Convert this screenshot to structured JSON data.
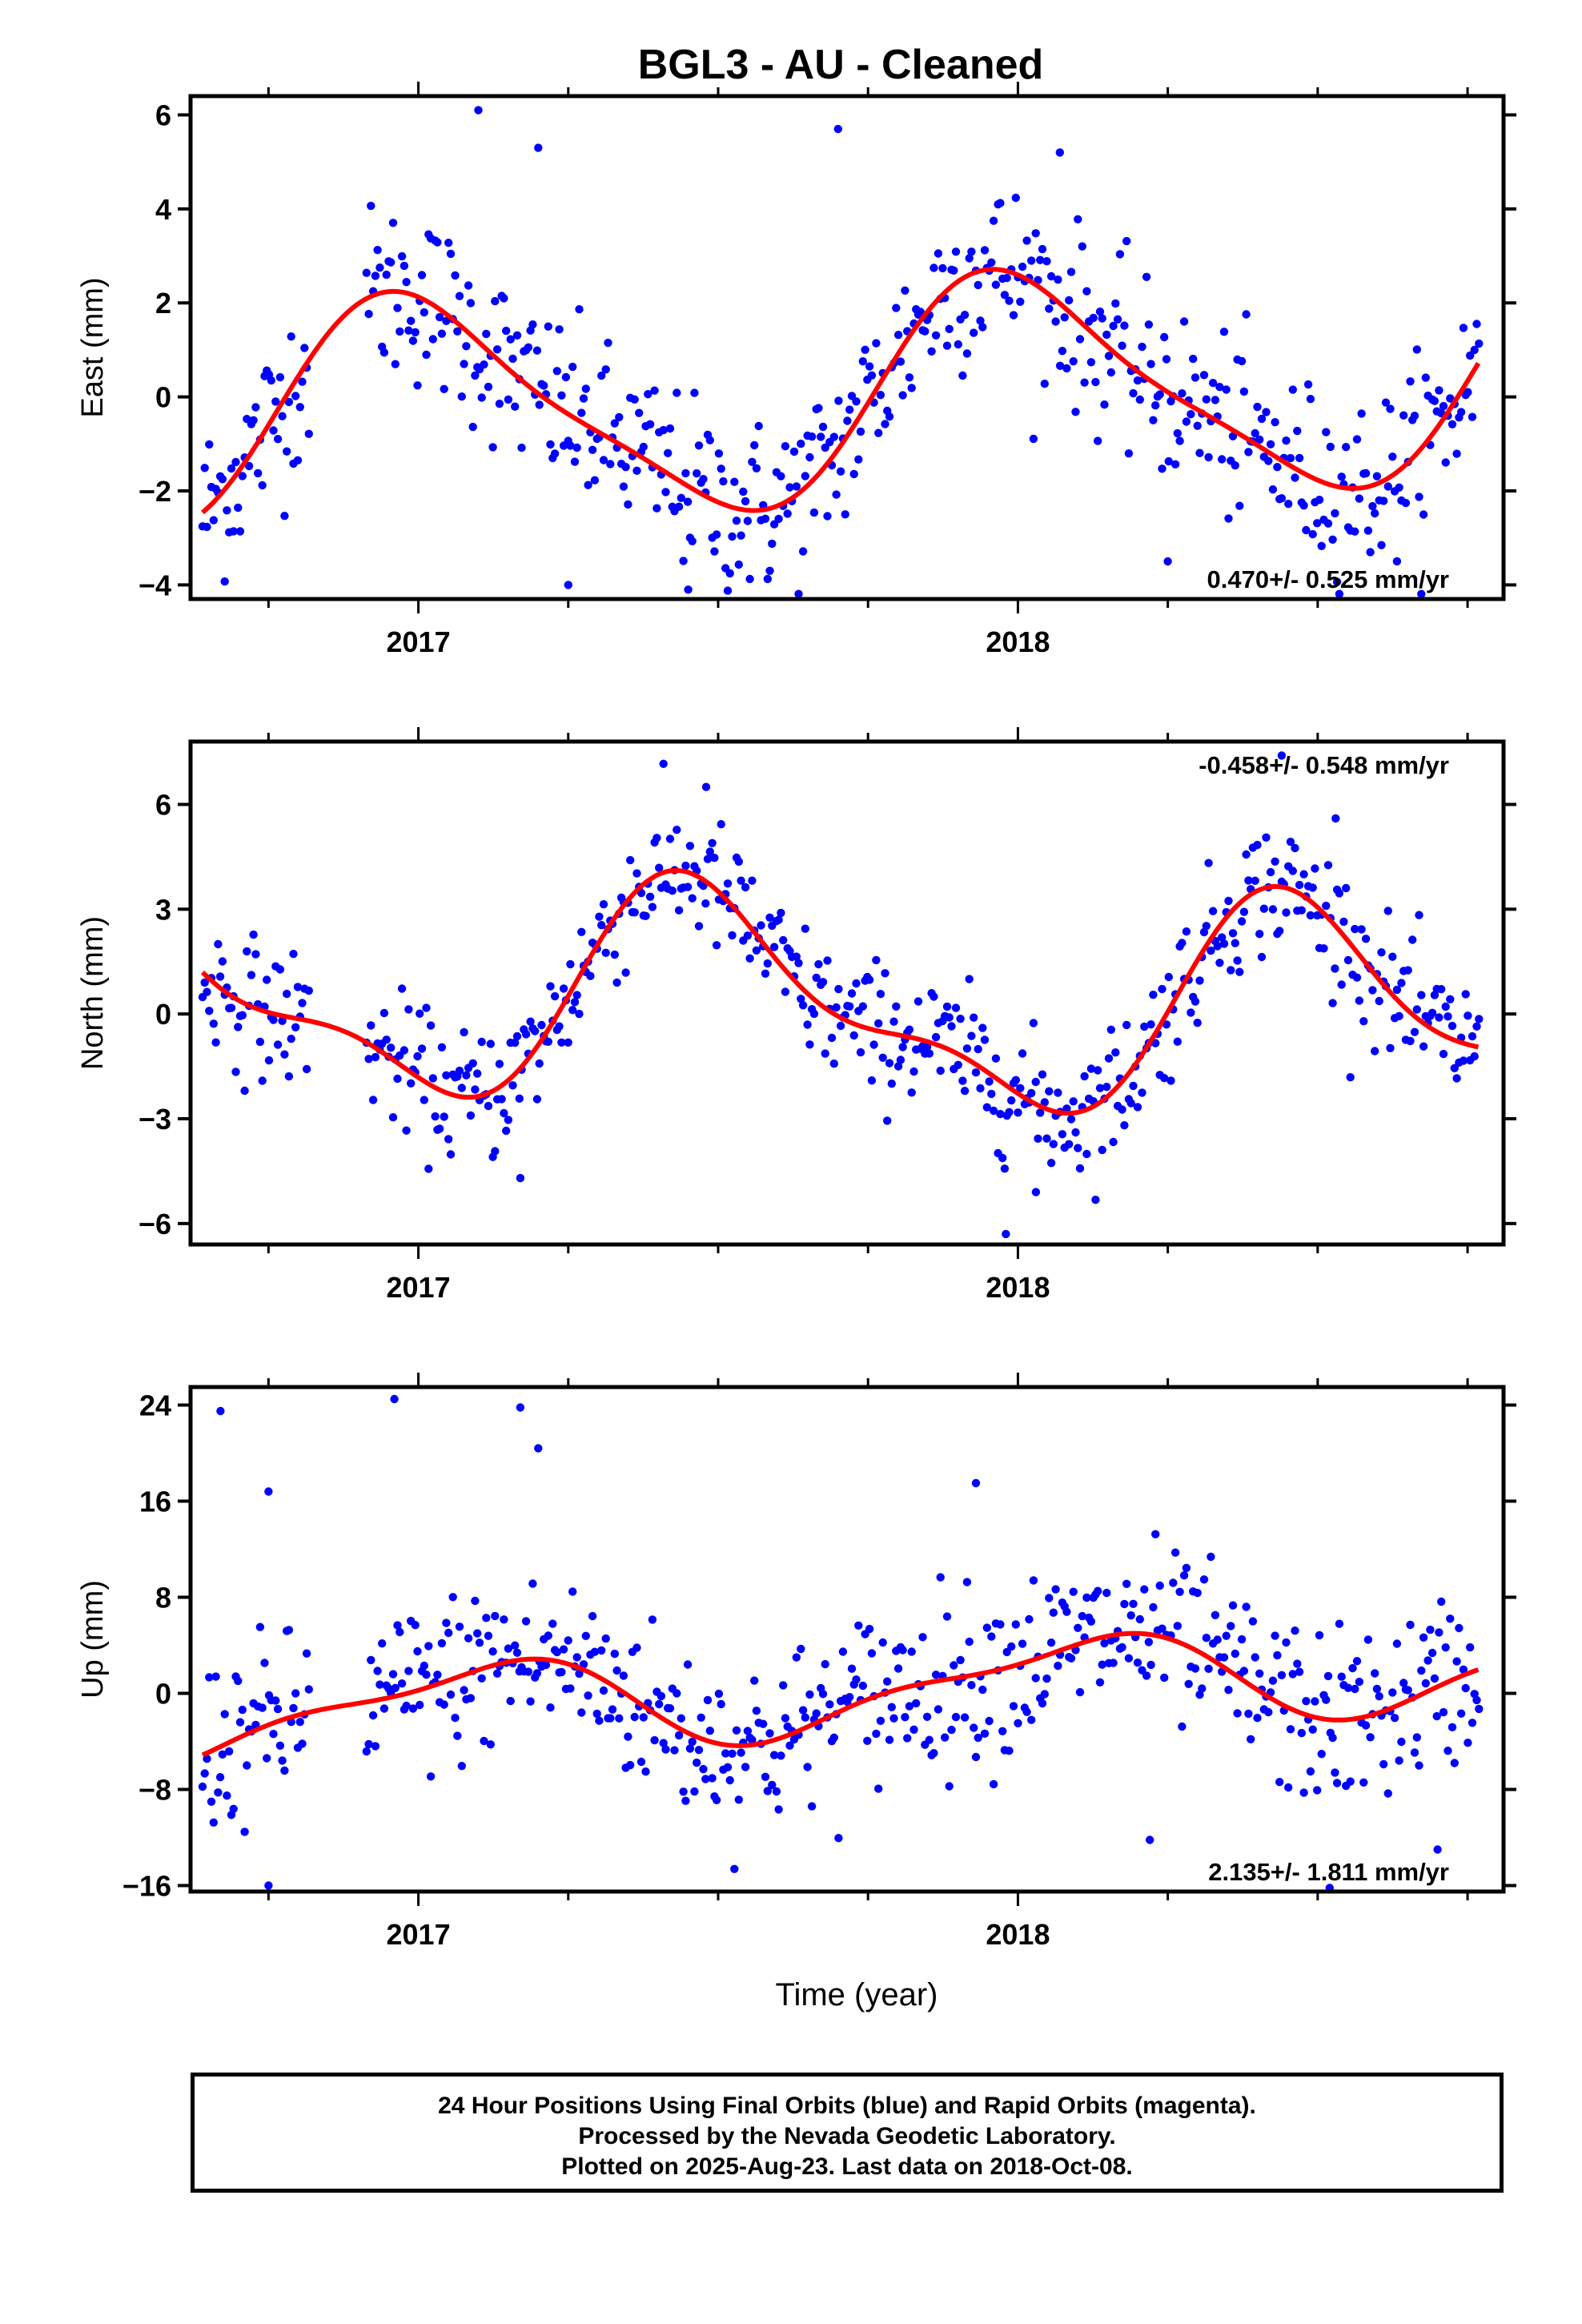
{
  "title": "BGL3  - AU - Cleaned",
  "footer": {
    "line1": "24 Hour Positions Using Final Orbits (blue) and Rapid Orbits (magenta).",
    "line2": "Processed by the Nevada Geodetic Laboratory.",
    "line3": "Plotted on 2025-Aug-23. Last data on 2018-Oct-08."
  },
  "colors": {
    "points": "#0000ff",
    "fit": "#ff0000",
    "frame": "#000000"
  },
  "chart_data": [
    {
      "type": "scatter",
      "panel": "east",
      "ylabel": "East (mm)",
      "xlabel": "",
      "xlim": [
        2016.62,
        2018.81
      ],
      "ylim": [
        -4.3,
        6.4
      ],
      "yticks": [
        6,
        4,
        2,
        0,
        -2,
        -4
      ],
      "ytick_labels": [
        "6",
        "4",
        "2",
        "0",
        "−2",
        "−4"
      ],
      "xticks": [
        2017,
        2018
      ],
      "xtick_labels": [
        "2017",
        "2018"
      ],
      "rate_label": "0.470+/- 0.525 mm/yr",
      "rate_position": "bottom-right",
      "fit": {
        "offset": 0.0,
        "trend": 0.47,
        "t0": 2017.7,
        "a1": 2.3,
        "p1": 2018.0,
        "a2": 0.5,
        "p2": 2017.9
      },
      "noise": 0.95,
      "gaps": [
        [
          2016.82,
          2016.91
        ]
      ],
      "outliers": [
        [
          2017.1,
          6.1
        ],
        [
          2017.2,
          5.3
        ],
        [
          2017.7,
          5.7
        ],
        [
          2018.07,
          5.2
        ],
        [
          2017.45,
          -4.1
        ],
        [
          2017.25,
          -4.0
        ],
        [
          2018.25,
          -3.5
        ]
      ]
    },
    {
      "type": "scatter",
      "panel": "north",
      "ylabel": "North (mm)",
      "xlabel": "",
      "xlim": [
        2016.62,
        2018.81
      ],
      "ylim": [
        -6.6,
        7.8
      ],
      "yticks": [
        6,
        3,
        0,
        -3,
        -6
      ],
      "ytick_labels": [
        "6",
        "3",
        "0",
        "−3",
        "−6"
      ],
      "xticks": [
        2017,
        2018
      ],
      "xtick_labels": [
        "2017",
        "2018"
      ],
      "rate_label": "-0.458+/- 0.548 mm/yr",
      "rate_position": "top-right",
      "fit": {
        "offset": 0.3,
        "trend": -0.458,
        "t0": 2017.7,
        "a1": 2.8,
        "p1": 2017.48,
        "a2": 1.1,
        "p2": 2017.4
      },
      "noise": 0.95,
      "gaps": [
        [
          2016.82,
          2016.91
        ]
      ],
      "outliers": [
        [
          2017.48,
          6.5
        ],
        [
          2018.44,
          7.4
        ],
        [
          2017.98,
          -6.3
        ],
        [
          2018.03,
          -5.1
        ],
        [
          2017.17,
          -4.7
        ],
        [
          2018.53,
          5.6
        ]
      ]
    },
    {
      "type": "scatter",
      "panel": "up",
      "ylabel": "Up (mm)",
      "xlabel": "Time (year)",
      "xlim": [
        2016.62,
        2018.81
      ],
      "ylim": [
        -16.5,
        25.5
      ],
      "yticks": [
        24,
        16,
        8,
        0,
        -8,
        -16
      ],
      "ytick_labels": [
        "24",
        "16",
        "8",
        "0",
        "−8",
        "−16"
      ],
      "xticks": [
        2017,
        2018
      ],
      "xtick_labels": [
        "2017",
        "2018"
      ],
      "rate_label": "2.135+/- 1.811 mm/yr",
      "rate_position": "bottom-right",
      "fit": {
        "offset": 0.2,
        "trend": 2.135,
        "t0": 2017.7,
        "a1": 3.4,
        "p1": 2017.1,
        "a2": 1.2,
        "p2": 2017.25
      },
      "noise": 3.6,
      "gaps": [
        [
          2016.82,
          2016.91
        ]
      ],
      "outliers": [
        [
          2016.67,
          23.5
        ],
        [
          2016.96,
          24.5
        ],
        [
          2017.17,
          23.8
        ],
        [
          2017.2,
          20.4
        ],
        [
          2016.75,
          16.8
        ],
        [
          2017.93,
          17.5
        ],
        [
          2016.75,
          -16.0
        ],
        [
          2018.52,
          -16.2
        ],
        [
          2018.7,
          -13.0
        ],
        [
          2018.22,
          -12.2
        ]
      ]
    }
  ]
}
